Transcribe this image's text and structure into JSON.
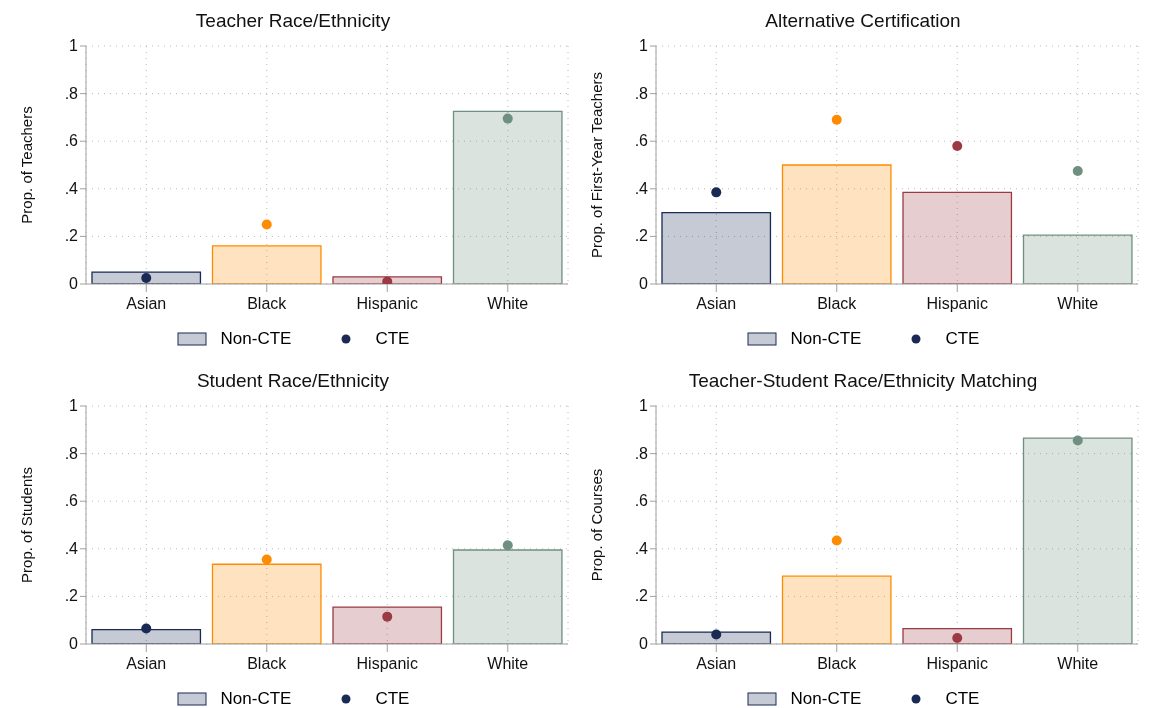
{
  "chart_data": [
    {
      "type": "bar",
      "title": "Teacher Race/Ethnicity",
      "ylabel": "Prop. of Teachers",
      "categories": [
        "Asian",
        "Black",
        "Hispanic",
        "White"
      ],
      "ylim": [
        0,
        1
      ],
      "yticks": [
        {
          "value": 0,
          "label": "0"
        },
        {
          "value": 0.2,
          "label": ".2"
        },
        {
          "value": 0.4,
          "label": ".4"
        },
        {
          "value": 0.6,
          "label": ".6"
        },
        {
          "value": 0.8,
          "label": ".8"
        },
        {
          "value": 1,
          "label": "1"
        }
      ],
      "grid": true,
      "legend": "bottom",
      "series": [
        {
          "name": "Non-CTE",
          "colors": [
            "#1a2a55",
            "#ff8c00",
            "#9b3a42",
            "#6f9080"
          ],
          "values": [
            0.05,
            0.16,
            0.03,
            0.725
          ]
        },
        {
          "name": "CTE",
          "type": "scatter",
          "marker": "circle",
          "colors": [
            "#1a2a55",
            "#ff8c00",
            "#9b3a42",
            "#6f9080"
          ],
          "values": [
            0.025,
            0.25,
            0.01,
            0.695
          ]
        }
      ]
    },
    {
      "type": "bar",
      "title": "Alternative Certification",
      "ylabel": "Prop. of First-Year Teachers",
      "categories": [
        "Asian",
        "Black",
        "Hispanic",
        "White"
      ],
      "ylim": [
        0,
        1
      ],
      "yticks": [
        {
          "value": 0,
          "label": "0"
        },
        {
          "value": 0.2,
          "label": ".2"
        },
        {
          "value": 0.4,
          "label": ".4"
        },
        {
          "value": 0.6,
          "label": ".6"
        },
        {
          "value": 0.8,
          "label": ".8"
        },
        {
          "value": 1,
          "label": "1"
        }
      ],
      "grid": true,
      "legend": "bottom",
      "series": [
        {
          "name": "Non-CTE",
          "colors": [
            "#1a2a55",
            "#ff8c00",
            "#9b3a42",
            "#6f9080"
          ],
          "values": [
            0.3,
            0.5,
            0.385,
            0.205
          ]
        },
        {
          "name": "CTE",
          "type": "scatter",
          "marker": "circle",
          "colors": [
            "#1a2a55",
            "#ff8c00",
            "#9b3a42",
            "#6f9080"
          ],
          "values": [
            0.385,
            0.69,
            0.58,
            0.475
          ]
        }
      ]
    },
    {
      "type": "bar",
      "title": "Student Race/Ethnicity",
      "ylabel": "Prop. of Students",
      "categories": [
        "Asian",
        "Black",
        "Hispanic",
        "White"
      ],
      "ylim": [
        0,
        1
      ],
      "yticks": [
        {
          "value": 0,
          "label": "0"
        },
        {
          "value": 0.2,
          "label": ".2"
        },
        {
          "value": 0.4,
          "label": ".4"
        },
        {
          "value": 0.6,
          "label": ".6"
        },
        {
          "value": 0.8,
          "label": ".8"
        },
        {
          "value": 1,
          "label": "1"
        }
      ],
      "grid": true,
      "legend": "bottom",
      "series": [
        {
          "name": "Non-CTE",
          "colors": [
            "#1a2a55",
            "#ff8c00",
            "#9b3a42",
            "#6f9080"
          ],
          "values": [
            0.06,
            0.335,
            0.155,
            0.395
          ]
        },
        {
          "name": "CTE",
          "type": "scatter",
          "marker": "circle",
          "colors": [
            "#1a2a55",
            "#ff8c00",
            "#9b3a42",
            "#6f9080"
          ],
          "values": [
            0.065,
            0.355,
            0.115,
            0.415
          ]
        }
      ]
    },
    {
      "type": "bar",
      "title": "Teacher-Student Race/Ethnicity Matching",
      "ylabel": "Prop. of Courses",
      "categories": [
        "Asian",
        "Black",
        "Hispanic",
        "White"
      ],
      "ylim": [
        0,
        1
      ],
      "yticks": [
        {
          "value": 0,
          "label": "0"
        },
        {
          "value": 0.2,
          "label": ".2"
        },
        {
          "value": 0.4,
          "label": ".4"
        },
        {
          "value": 0.6,
          "label": ".6"
        },
        {
          "value": 0.8,
          "label": ".8"
        },
        {
          "value": 1,
          "label": "1"
        }
      ],
      "grid": true,
      "legend": "bottom",
      "series": [
        {
          "name": "Non-CTE",
          "colors": [
            "#1a2a55",
            "#ff8c00",
            "#9b3a42",
            "#6f9080"
          ],
          "values": [
            0.05,
            0.285,
            0.065,
            0.865
          ]
        },
        {
          "name": "CTE",
          "type": "scatter",
          "marker": "circle",
          "colors": [
            "#1a2a55",
            "#ff8c00",
            "#9b3a42",
            "#6f9080"
          ],
          "values": [
            0.04,
            0.435,
            0.025,
            0.855
          ]
        }
      ]
    }
  ]
}
